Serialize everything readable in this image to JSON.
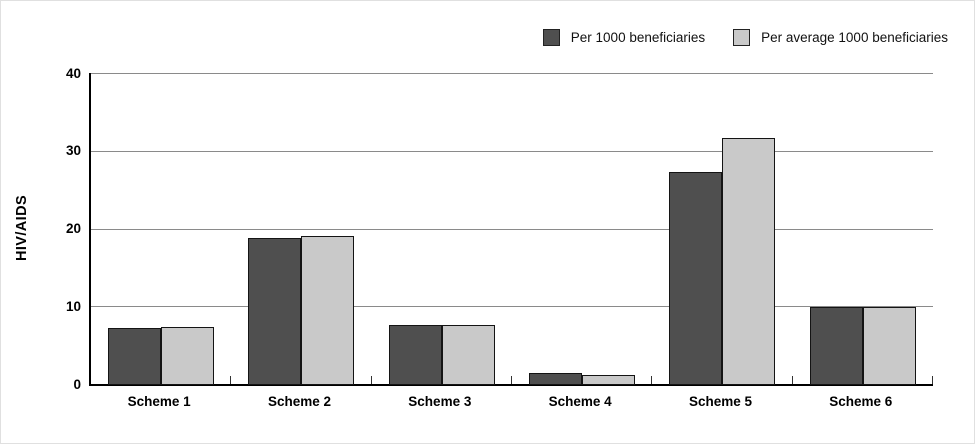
{
  "chart_data": {
    "type": "bar",
    "title": "",
    "xlabel": "",
    "ylabel": "HIV/AIDS",
    "categories": [
      "Scheme 1",
      "Scheme 2",
      "Scheme 3",
      "Scheme 4",
      "Scheme 5",
      "Scheme 6"
    ],
    "series": [
      {
        "name": "Per 1000 beneficiaries",
        "color": "#4f4f4f",
        "values": [
          7.3,
          18.9,
          7.7,
          1.5,
          27.4,
          10.0
        ]
      },
      {
        "name": "Per average 1000 beneficiaries",
        "color": "#c9c9c9",
        "values": [
          7.5,
          19.2,
          7.7,
          1.3,
          31.8,
          10.0
        ]
      }
    ],
    "ylim": [
      0,
      40
    ],
    "yticks": [
      0,
      10,
      20,
      30,
      40
    ],
    "grid": "horizontal",
    "legend_position": "top-right"
  }
}
